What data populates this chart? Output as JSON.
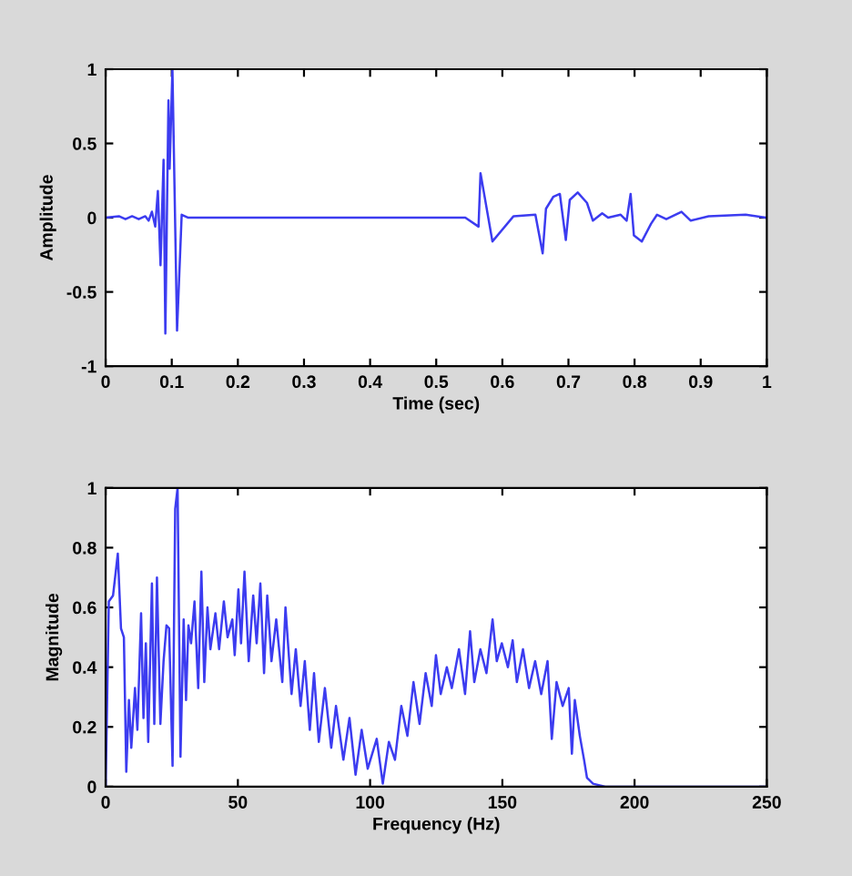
{
  "chart_data": [
    {
      "type": "line",
      "xlabel": "Time (sec)",
      "ylabel": "Amplitude",
      "xlim": [
        0,
        1
      ],
      "ylim": [
        -1,
        1
      ],
      "xticks": [
        0,
        0.1,
        0.2,
        0.3,
        0.4,
        0.5,
        0.6,
        0.7,
        0.8,
        0.9,
        1
      ],
      "yticks": [
        -1,
        -0.5,
        0,
        0.5,
        1
      ],
      "grid": false,
      "marker": "none",
      "line_style": "solid",
      "series": [
        {
          "color": "#3c3cf0",
          "x": [
            0,
            0.02,
            0.03,
            0.04,
            0.05,
            0.06,
            0.065,
            0.07,
            0.075,
            0.079,
            0.083,
            0.0876,
            0.0903,
            0.095,
            0.0968,
            0.101,
            0.108,
            0.115,
            0.125,
            0.2,
            0.3,
            0.4,
            0.5,
            0.544,
            0.564,
            0.567,
            0.585,
            0.617,
            0.65,
            0.661,
            0.666,
            0.677,
            0.687,
            0.696,
            0.702,
            0.714,
            0.728,
            0.737,
            0.751,
            0.76,
            0.779,
            0.788,
            0.794,
            0.799,
            0.811,
            0.825,
            0.834,
            0.848,
            0.871,
            0.885,
            0.912,
            0.968,
            1
          ],
          "values": [
            0,
            0.01,
            -0.01,
            0.01,
            -0.01,
            0.01,
            -0.02,
            0.04,
            -0.06,
            0.18,
            -0.32,
            0.39,
            -0.78,
            0.79,
            0.33,
            1.0,
            -0.76,
            0.02,
            0,
            0,
            0,
            0,
            0,
            0,
            -0.06,
            0.3,
            -0.16,
            0.01,
            0.02,
            -0.24,
            0.06,
            0.14,
            0.16,
            -0.15,
            0.12,
            0.17,
            0.1,
            -0.02,
            0.03,
            0,
            0.02,
            -0.02,
            0.16,
            -0.12,
            -0.16,
            -0.04,
            0.02,
            -0.01,
            0.04,
            -0.02,
            0.01,
            0.02,
            0
          ]
        }
      ]
    },
    {
      "type": "line",
      "xlabel": "Frequency (Hz)",
      "ylabel": "Magnitude",
      "xlim": [
        0,
        250
      ],
      "ylim": [
        0,
        1
      ],
      "xticks": [
        0,
        50,
        100,
        150,
        200,
        250
      ],
      "yticks": [
        0,
        0.2,
        0.4,
        0.6,
        0.8,
        1
      ],
      "grid": false,
      "marker": "none",
      "line_style": "solid",
      "series": [
        {
          "color": "#3c3cf0",
          "x": [
            0,
            1.2,
            2.8,
            4.6,
            5.8,
            6.9,
            7.8,
            8.8,
            9.7,
            11.1,
            12,
            13.4,
            14.3,
            15.2,
            16.1,
            17.5,
            18.4,
            19.4,
            20.7,
            21.9,
            23,
            24,
            25.3,
            26.3,
            27.2,
            28.3,
            29.5,
            30.4,
            31.3,
            32.3,
            33.6,
            35,
            36.2,
            37.3,
            38.5,
            39.6,
            41.5,
            42.9,
            44.7,
            46.1,
            47.9,
            48.8,
            50.2,
            51.2,
            52.5,
            54.1,
            55.8,
            57.1,
            58.5,
            59.9,
            61.1,
            62.7,
            64.5,
            66.8,
            68,
            70.3,
            71.9,
            73.7,
            75.3,
            77.2,
            78.8,
            80.6,
            82.9,
            85.3,
            87.1,
            89.9,
            92.2,
            94.5,
            96.8,
            99.1,
            102.5,
            104.8,
            107.1,
            109.4,
            111.8,
            114.1,
            116.4,
            118.7,
            121,
            123.3,
            124.9,
            126.7,
            129,
            130.9,
            133.6,
            135.9,
            137.8,
            139.4,
            141.7,
            144,
            146.3,
            147.9,
            149.8,
            152.1,
            153.9,
            155.5,
            157.8,
            160.1,
            162.4,
            164.7,
            167.1,
            168.7,
            170.5,
            172.8,
            175.1,
            176.3,
            177.4,
            179.3,
            180.9,
            182,
            184.3,
            188.9,
            250
          ],
          "values": [
            0,
            0.62,
            0.64,
            0.78,
            0.53,
            0.5,
            0.05,
            0.29,
            0.13,
            0.33,
            0.19,
            0.58,
            0.23,
            0.48,
            0.15,
            0.68,
            0.21,
            0.7,
            0.21,
            0.42,
            0.54,
            0.53,
            0.07,
            0.93,
            1.0,
            0.1,
            0.56,
            0.29,
            0.54,
            0.48,
            0.62,
            0.33,
            0.72,
            0.35,
            0.6,
            0.46,
            0.58,
            0.46,
            0.62,
            0.5,
            0.56,
            0.44,
            0.66,
            0.48,
            0.72,
            0.42,
            0.64,
            0.48,
            0.68,
            0.38,
            0.64,
            0.42,
            0.56,
            0.35,
            0.6,
            0.31,
            0.46,
            0.27,
            0.42,
            0.19,
            0.38,
            0.15,
            0.33,
            0.13,
            0.27,
            0.09,
            0.23,
            0.04,
            0.19,
            0.06,
            0.16,
            0.01,
            0.15,
            0.09,
            0.27,
            0.17,
            0.35,
            0.21,
            0.38,
            0.27,
            0.44,
            0.31,
            0.4,
            0.33,
            0.46,
            0.31,
            0.52,
            0.35,
            0.46,
            0.38,
            0.56,
            0.42,
            0.48,
            0.4,
            0.49,
            0.35,
            0.46,
            0.33,
            0.42,
            0.31,
            0.42,
            0.16,
            0.35,
            0.27,
            0.33,
            0.11,
            0.29,
            0.17,
            0.09,
            0.03,
            0.01,
            0,
            0
          ]
        }
      ]
    }
  ]
}
